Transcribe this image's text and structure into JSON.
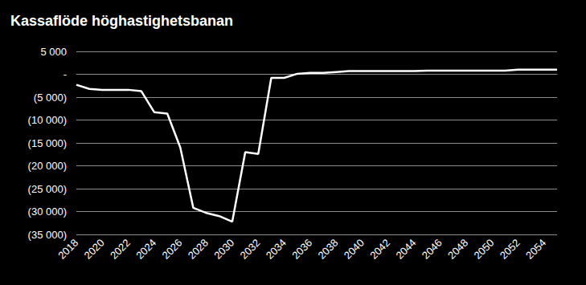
{
  "chart_data": {
    "type": "line",
    "title": "Kassaflöde höghastighetsbanan",
    "categories": [
      "2018",
      null,
      "2020",
      null,
      "2022",
      null,
      "2024",
      null,
      "2026",
      null,
      "2028",
      null,
      "2030",
      null,
      "2032",
      null,
      "2034",
      null,
      "2036",
      null,
      "2038",
      null,
      "2040",
      null,
      "2042",
      null,
      "2044",
      null,
      "2046",
      null,
      "2048",
      null,
      "2050",
      null,
      "2052",
      null,
      "2054",
      null
    ],
    "values": [
      -2300,
      -3200,
      -3400,
      -3400,
      -3400,
      -3700,
      -8300,
      -8600,
      -16000,
      -29200,
      -30300,
      -31000,
      -32200,
      -17000,
      -17400,
      -800,
      -800,
      100,
      300,
      300,
      500,
      700,
      700,
      700,
      700,
      700,
      700,
      800,
      800,
      800,
      800,
      800,
      800,
      800,
      1000,
      1000,
      1000,
      1000
    ],
    "color": "#ffffff",
    "ylim": [
      -35000,
      5000
    ],
    "yticks": [
      {
        "value": -35000,
        "label": "(35 000)"
      },
      {
        "value": -30000,
        "label": "(30 000)"
      },
      {
        "value": -25000,
        "label": "(25 000)"
      },
      {
        "value": -20000,
        "label": "(20 000)"
      },
      {
        "value": -15000,
        "label": "(15 000)"
      },
      {
        "value": -10000,
        "label": "(10 000)"
      },
      {
        "value": -5000,
        "label": "(5 000)"
      },
      {
        "value": 0,
        "label": "-"
      },
      {
        "value": 5000,
        "label": "5 000"
      }
    ],
    "grid": true
  }
}
